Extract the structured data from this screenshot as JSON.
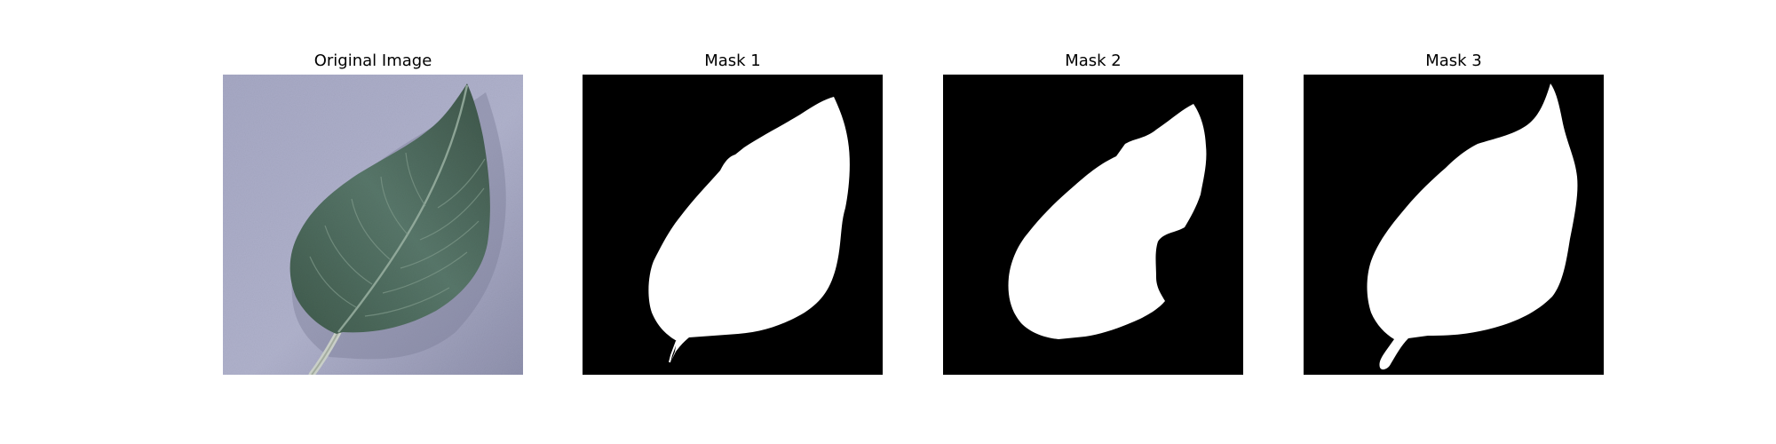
{
  "panels": [
    {
      "title": "Original Image",
      "content": "photo of a green leaf on a lavender-grey background"
    },
    {
      "title": "Mask 1",
      "content": "binary leaf mask"
    },
    {
      "title": "Mask 2",
      "content": "binary leaf mask with notch on right edge"
    },
    {
      "title": "Mask 3",
      "content": "binary leaf mask including stem"
    }
  ],
  "colors": {
    "background": "#ffffff",
    "mask_background": "#000000",
    "mask_foreground": "#ffffff",
    "leaf": "#4e6a5c",
    "photo_background": "#a9abc6"
  }
}
